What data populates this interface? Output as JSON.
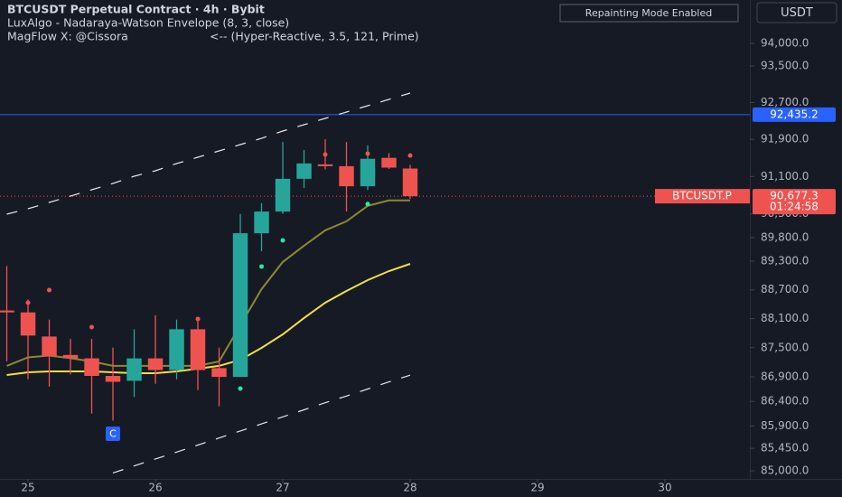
{
  "header": {
    "title": "BTCUSDT Perpetual Contract · 4h · Bybit",
    "indicator1": "LuxAlgo - Nadaraya-Watson Envelope (8, 3, close)",
    "indicator2_name": "MagFlow X: @Cissora",
    "indicator2_params": "<-- (Hyper-Reactive, 3.5, 121, Prime)"
  },
  "badge": "Repainting Mode Enabled",
  "currency": "USDT",
  "chart_data": {
    "type": "candlestick",
    "categories": [
      null,
      null,
      null,
      null,
      null,
      null,
      null,
      null,
      null,
      null,
      null,
      null,
      null,
      null,
      null,
      null,
      null,
      null,
      null,
      null
    ],
    "open": [
      88270,
      88230,
      87730,
      87350,
      87280,
      86920,
      86820,
      87280,
      87040,
      87880,
      87080,
      86900,
      89890,
      90350,
      91050,
      91360,
      91320,
      90890,
      91500,
      91270
    ],
    "high": [
      89200,
      88500,
      88080,
      87680,
      87680,
      87500,
      87880,
      88170,
      88080,
      88080,
      87500,
      90300,
      90530,
      91840,
      91670,
      91900,
      91840,
      91770,
      91600,
      91350
    ],
    "low": [
      87220,
      86850,
      86700,
      86950,
      86150,
      86010,
      86490,
      86760,
      86850,
      86630,
      86300,
      86900,
      89510,
      90300,
      90850,
      91250,
      90350,
      90810,
      91260,
      90620
    ],
    "close": [
      88230,
      87750,
      87320,
      87280,
      86920,
      86800,
      87280,
      87040,
      87880,
      87040,
      86900,
      89890,
      90350,
      91050,
      91380,
      91320,
      90890,
      91480,
      91290,
      90677.3
    ],
    "up_color": "#26a69a",
    "down_color": "#ef5350",
    "lines": [
      {
        "color": "#e6e6e6",
        "dashed": true,
        "values": [
          90295,
          90410,
          90545,
          90680,
          90815,
          90950,
          91105,
          91221,
          91377,
          91513,
          91649,
          91786,
          91922,
          92080,
          92217,
          92354,
          92492,
          92630,
          92768,
          92907
        ]
      },
      {
        "color": "#e6e6e6",
        "dashed": true,
        "values": [
          null,
          null,
          null,
          null,
          null,
          84957,
          85098,
          85236,
          85375,
          85517,
          85659,
          85801,
          85944,
          86087,
          86229,
          86373,
          86509,
          86653,
          86799,
          86935
        ]
      },
      {
        "color": "#f2df45",
        "dashed": false,
        "values": [
          86939,
          86995,
          87012,
          87012,
          87012,
          86995,
          86976,
          86976,
          87012,
          87068,
          87125,
          87250,
          87496,
          87776,
          88113,
          88431,
          88676,
          88903,
          89093,
          89245
        ]
      },
      {
        "color": "#8a8a2e",
        "dashed": false,
        "values": [
          87125,
          87300,
          87338,
          87283,
          87216,
          87125,
          87125,
          87125,
          87125,
          87125,
          87216,
          87962,
          88714,
          89283,
          89626,
          89951,
          90143,
          90472,
          90588,
          90588
        ]
      }
    ],
    "markers": [
      {
        "color": "#ef5350",
        "values": [
          null,
          88431,
          88694,
          null,
          87925,
          null,
          null,
          null,
          null,
          88094,
          null,
          null,
          null,
          null,
          null,
          91571,
          null,
          91590,
          91395,
          91550
        ]
      },
      {
        "color": "#2ee6a0",
        "values": [
          null,
          null,
          null,
          null,
          null,
          null,
          null,
          null,
          null,
          null,
          null,
          86662,
          89188,
          89740,
          null,
          null,
          null,
          90510,
          null,
          null
        ]
      }
    ],
    "log_scale": true,
    "ylim": [
      84837,
      94965
    ],
    "yticks": [
      {
        "value": 85000,
        "label": "85,000.0"
      },
      {
        "value": 85450,
        "label": "85,450.0"
      },
      {
        "value": 85900,
        "label": "85,900.0"
      },
      {
        "value": 86400,
        "label": "86,400.0"
      },
      {
        "value": 86900,
        "label": "86,900.0"
      },
      {
        "value": 87500,
        "label": "87,500.0"
      },
      {
        "value": 88100,
        "label": "88,100.0"
      },
      {
        "value": 88700,
        "label": "88,700.0"
      },
      {
        "value": 89300,
        "label": "89,300.0"
      },
      {
        "value": 89800,
        "label": "89,800.0"
      },
      {
        "value": 90300,
        "label": "90,300.0"
      },
      {
        "value": 91100,
        "label": "91,100.0"
      },
      {
        "value": 91900,
        "label": "91,900.0"
      },
      {
        "value": 92700,
        "label": "92,700.0"
      },
      {
        "value": 93500,
        "label": "93,500.0"
      },
      {
        "value": 94000,
        "label": "94,000.0"
      }
    ],
    "xlim": [
      -0.32,
      35
    ],
    "xticks": [
      {
        "value": 1,
        "label": "25"
      },
      {
        "value": 7,
        "label": "26"
      },
      {
        "value": 13,
        "label": "27"
      },
      {
        "value": 19,
        "label": "28"
      },
      {
        "value": 25,
        "label": "29"
      },
      {
        "value": 31,
        "label": "30"
      }
    ],
    "price_line": {
      "value": 92435.2,
      "label": "92,435.2",
      "color": "#2962ff"
    },
    "last_price": {
      "value": 90677.3,
      "label": "90,677.3",
      "countdown": "01:24:58",
      "symbol": "BTCUSDT.P",
      "color": "#ef5350"
    },
    "signal_marker": {
      "label": "C",
      "index": 5,
      "color": "#2962ff"
    }
  }
}
